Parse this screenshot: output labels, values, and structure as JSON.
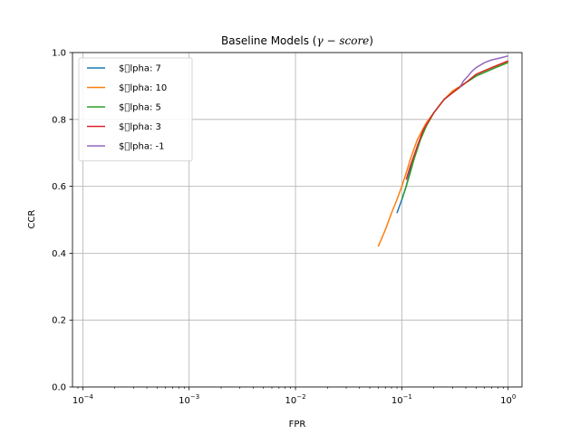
{
  "chart_data": {
    "type": "line",
    "title": "Baseline Models (",
    "title_math": "γ − score",
    "title_close": ")",
    "xlabel": "FPR",
    "ylabel": "CCR",
    "xscale": "log",
    "xlim": [
      8e-05,
      1.35
    ],
    "ylim": [
      0.0,
      1.0
    ],
    "grid": true,
    "legend_position": "upper-left",
    "x_ticks": [
      {
        "value": 0.0001,
        "base": "10",
        "exp": "−4"
      },
      {
        "value": 0.001,
        "base": "10",
        "exp": "−3"
      },
      {
        "value": 0.01,
        "base": "10",
        "exp": "−2"
      },
      {
        "value": 0.1,
        "base": "10",
        "exp": "−1"
      },
      {
        "value": 1.0,
        "base": "10",
        "exp": "0"
      }
    ],
    "y_ticks": [
      {
        "value": 0.0,
        "label": "0.0"
      },
      {
        "value": 0.2,
        "label": "0.2"
      },
      {
        "value": 0.4,
        "label": "0.4"
      },
      {
        "value": 0.6,
        "label": "0.6"
      },
      {
        "value": 0.8,
        "label": "0.8"
      },
      {
        "value": 1.0,
        "label": "1.0"
      }
    ],
    "series": [
      {
        "name": "$\u0000lpha: 7",
        "color": "#1f77b4",
        "x": [
          0.09,
          0.1,
          0.11,
          0.12,
          0.14,
          0.16,
          0.2,
          0.25,
          0.3,
          0.4,
          0.5,
          0.7,
          1.0
        ],
        "y": [
          0.52,
          0.56,
          0.6,
          0.65,
          0.72,
          0.77,
          0.82,
          0.86,
          0.88,
          0.91,
          0.93,
          0.95,
          0.975
        ]
      },
      {
        "name": "$\u0000lpha: 10",
        "color": "#ff7f0e",
        "x": [
          0.06,
          0.07,
          0.08,
          0.09,
          0.1,
          0.11,
          0.12,
          0.14,
          0.17,
          0.2,
          0.25,
          0.3,
          0.4,
          0.5,
          0.7,
          1.0
        ],
        "y": [
          0.42,
          0.47,
          0.52,
          0.56,
          0.6,
          0.64,
          0.68,
          0.74,
          0.79,
          0.82,
          0.86,
          0.885,
          0.91,
          0.93,
          0.95,
          0.975
        ]
      },
      {
        "name": "$\u0000lpha: 5",
        "color": "#2ca02c",
        "x": [
          0.1,
          0.11,
          0.12,
          0.13,
          0.15,
          0.17,
          0.2,
          0.25,
          0.3,
          0.4,
          0.5,
          0.7,
          1.0
        ],
        "y": [
          0.56,
          0.6,
          0.64,
          0.68,
          0.74,
          0.78,
          0.82,
          0.86,
          0.88,
          0.91,
          0.93,
          0.95,
          0.97
        ]
      },
      {
        "name": "$\u0000lpha: 3",
        "color": "#d62728",
        "x": [
          0.11,
          0.12,
          0.14,
          0.16,
          0.2,
          0.25,
          0.3,
          0.4,
          0.5,
          0.7,
          1.0
        ],
        "y": [
          0.62,
          0.66,
          0.72,
          0.77,
          0.82,
          0.86,
          0.88,
          0.91,
          0.935,
          0.955,
          0.975
        ]
      },
      {
        "name": "$\u0000lpha: -1",
        "color": "#9467bd",
        "x": [
          0.35,
          0.38,
          0.42,
          0.46,
          0.5,
          0.6,
          0.7,
          0.85,
          1.0
        ],
        "y": [
          0.895,
          0.915,
          0.93,
          0.945,
          0.955,
          0.97,
          0.978,
          0.984,
          0.99
        ]
      }
    ]
  }
}
